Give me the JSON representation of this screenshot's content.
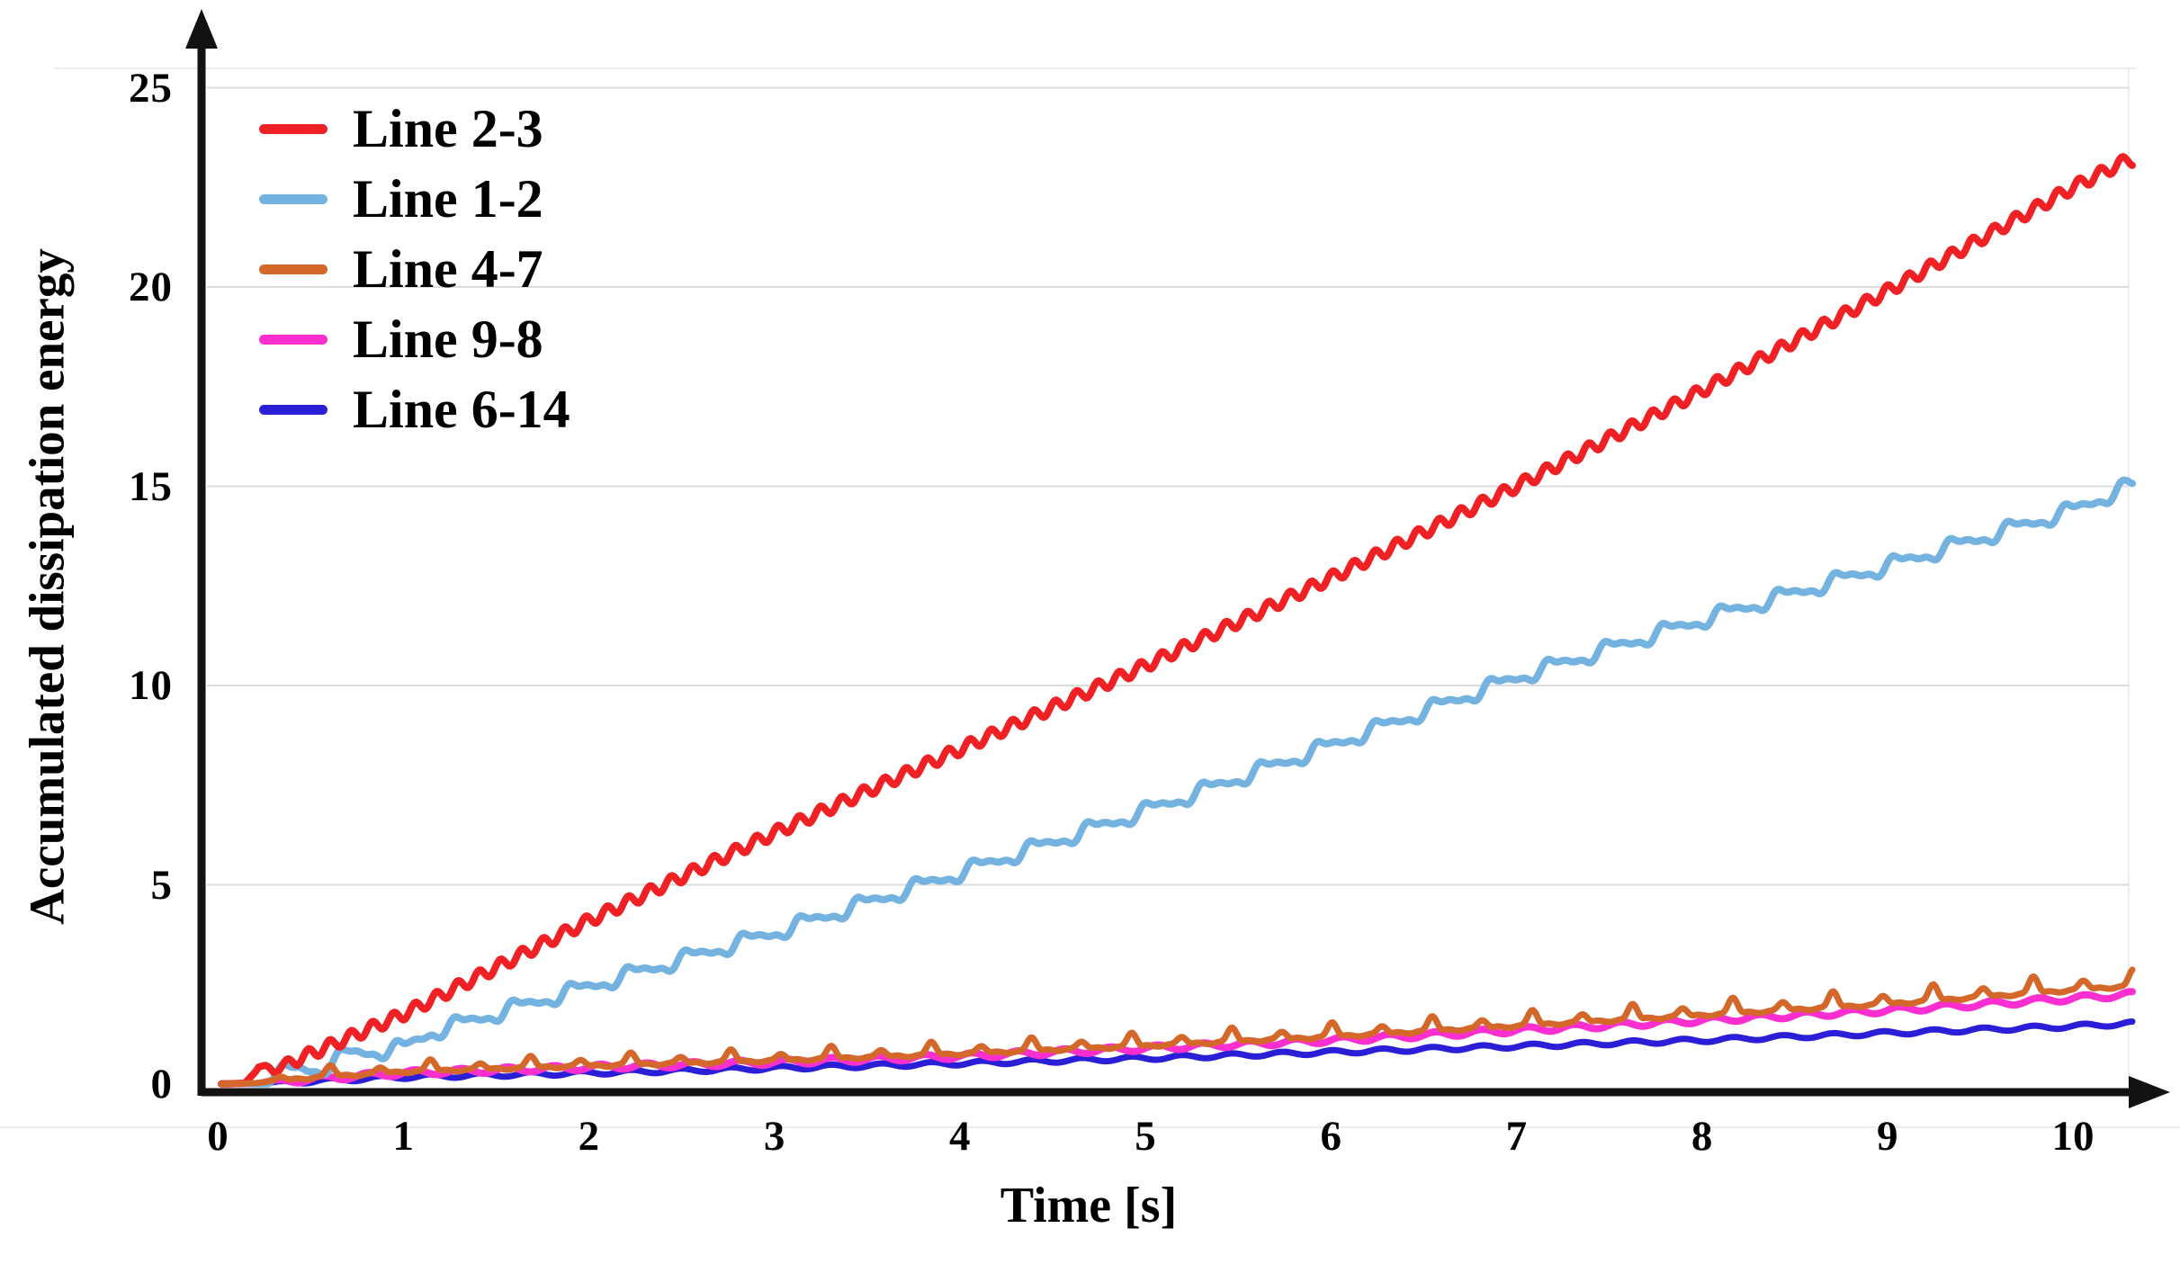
{
  "figure": {
    "background": "#FFFFFF",
    "axis_color": "#121212",
    "grid_color": "#DCDCDC",
    "border_color": "#ECECEC",
    "text_color": "#000000"
  },
  "chart_data": {
    "type": "line",
    "title": "",
    "xlabel": "Time [s]",
    "ylabel": "Accumulated dissipation energy",
    "xlim": [
      0,
      10.45
    ],
    "ylim": [
      0,
      26.5
    ],
    "x_ticks": [
      "0",
      "1",
      "2",
      "3",
      "4",
      "5",
      "6",
      "7",
      "8",
      "9",
      "10"
    ],
    "y_ticks": [
      "0",
      "5",
      "10",
      "15",
      "20",
      "25"
    ],
    "grid": "horizontal gridlines at each y tick, light gray",
    "legend_position": "upper-left inside plot area",
    "axes_style": "thick black lines with arrowheads at top (y) and right (x)",
    "series": [
      {
        "name": "Line 2-3",
        "color": "#EF2125",
        "stroke_width": 8,
        "trend_x": [
          0,
          0.15,
          0.22,
          0.3,
          0.42,
          1,
          2,
          3,
          4,
          5,
          6,
          7,
          8,
          9,
          10,
          10.3
        ],
        "trend_y": [
          0,
          0.02,
          0.45,
          0.35,
          0.6,
          1.75,
          4.1,
          6.3,
          8.4,
          10.5,
          12.7,
          15.0,
          17.4,
          19.9,
          22.5,
          23.2
        ],
        "oscillation": {
          "type": "sine",
          "amplitude": 0.15,
          "period": 0.115
        }
      },
      {
        "name": "Line 1-2",
        "color": "#74B2E0",
        "stroke_width": 8,
        "trend_x": [
          0,
          0.25,
          0.35,
          0.55,
          0.7,
          1.0,
          1.15,
          2,
          3,
          4,
          5,
          6,
          7,
          8,
          9,
          10,
          10.3
        ],
        "trend_y": [
          0,
          0.03,
          0.35,
          0.38,
          0.75,
          0.9,
          1.3,
          2.45,
          3.8,
          5.3,
          6.85,
          8.5,
          10.2,
          11.65,
          13.0,
          14.4,
          15.0
        ],
        "oscillation": {
          "type": "staircase",
          "amplitude": 0.27,
          "period": 0.31
        }
      },
      {
        "name": "Line 4-7",
        "color": "#D3682A",
        "stroke_width": 7,
        "trend_x": [
          0,
          0.18,
          0.5,
          1,
          2,
          3,
          4,
          5,
          6,
          7,
          8,
          9,
          10,
          10.3
        ],
        "trend_y": [
          0,
          0.02,
          0.15,
          0.3,
          0.45,
          0.58,
          0.75,
          0.95,
          1.18,
          1.45,
          1.72,
          2.0,
          2.35,
          2.45
        ],
        "oscillation": {
          "type": "spike",
          "amplitude": 0.3,
          "period": 0.27,
          "growth": 0.05,
          "alternation": 0.55
        }
      },
      {
        "name": "Line 9-8",
        "color": "#FB2FD0",
        "stroke_width": 8,
        "trend_x": [
          0,
          0.18,
          0.5,
          1,
          2,
          3,
          4,
          5,
          6,
          7,
          8,
          9,
          10,
          10.3
        ],
        "trend_y": [
          0,
          0.02,
          0.12,
          0.28,
          0.42,
          0.55,
          0.7,
          0.9,
          1.1,
          1.35,
          1.6,
          1.85,
          2.15,
          2.25
        ],
        "oscillation": {
          "type": "sine",
          "amplitude": 0.07,
          "period": 0.25
        }
      },
      {
        "name": "Line 6-14",
        "color": "#2A1FD6",
        "stroke_width": 7,
        "trend_x": [
          0,
          0.2,
          1,
          2,
          3,
          4,
          5,
          6,
          7,
          8,
          9,
          10,
          10.3
        ],
        "trend_y": [
          0,
          0.01,
          0.18,
          0.28,
          0.4,
          0.52,
          0.65,
          0.8,
          0.95,
          1.1,
          1.28,
          1.45,
          1.52
        ],
        "oscillation": {
          "type": "sine",
          "amplitude": 0.05,
          "period": 0.27
        }
      }
    ]
  }
}
